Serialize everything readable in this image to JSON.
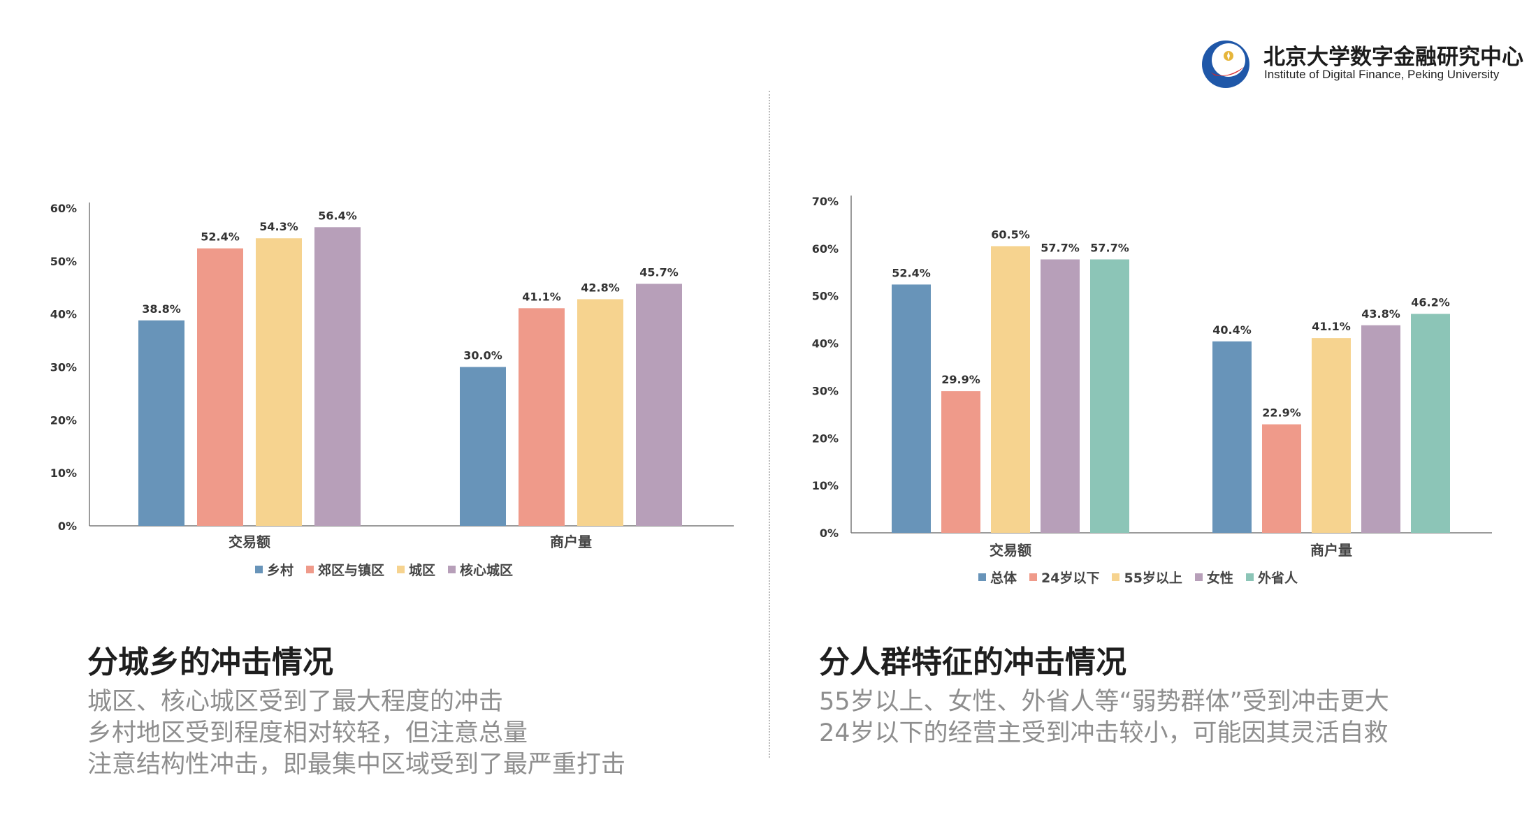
{
  "header": {
    "org_cn": "北京大学数字金融研究中心",
    "org_en": "Institute of Digital Finance, Peking University"
  },
  "colors": {
    "blue": "#6894b9",
    "salmon": "#ef9a8a",
    "yellow": "#f6d38f",
    "purple": "#b79fb9",
    "teal": "#8cc5b7",
    "logo_blue": "#1f57a8",
    "logo_red": "#d7262b",
    "logo_gold": "#e6b53a"
  },
  "chart_data": [
    {
      "type": "bar",
      "categories": [
        "交易额",
        "商户量"
      ],
      "series": [
        {
          "name": "乡村",
          "values": [
            38.8,
            30.0
          ],
          "labels": [
            "38.8%",
            "30.0%"
          ],
          "color": "#6894b9"
        },
        {
          "name": "郊区与镇区",
          "values": [
            52.4,
            41.1
          ],
          "labels": [
            "52.4%",
            "41.1%"
          ],
          "color": "#ef9a8a"
        },
        {
          "name": "城区",
          "values": [
            54.3,
            42.8
          ],
          "labels": [
            "54.3%",
            "42.8%"
          ],
          "color": "#f6d38f"
        },
        {
          "name": "核心城区",
          "values": [
            56.4,
            45.7
          ],
          "labels": [
            "56.4%",
            "45.7%"
          ],
          "color": "#b79fb9"
        }
      ],
      "ylim": [
        0,
        60
      ],
      "yticks": [
        "0%",
        "10%",
        "20%",
        "30%",
        "40%",
        "50%",
        "60%"
      ],
      "legend_position": "bottom",
      "grid": false
    },
    {
      "type": "bar",
      "categories": [
        "交易额",
        "商户量"
      ],
      "series": [
        {
          "name": "总体",
          "values": [
            52.4,
            40.4
          ],
          "labels": [
            "52.4%",
            "40.4%"
          ],
          "color": "#6894b9"
        },
        {
          "name": "24岁以下",
          "values": [
            29.9,
            22.9
          ],
          "labels": [
            "29.9%",
            "22.9%"
          ],
          "color": "#ef9a8a"
        },
        {
          "name": "55岁以上",
          "values": [
            60.5,
            41.1
          ],
          "labels": [
            "60.5%",
            "41.1%"
          ],
          "color": "#f6d38f"
        },
        {
          "name": "女性",
          "values": [
            57.7,
            43.8
          ],
          "labels": [
            "57.7%",
            "43.8%"
          ],
          "color": "#b79fb9"
        },
        {
          "name": "外省人",
          "values": [
            57.7,
            46.2
          ],
          "labels": [
            "57.7%",
            "46.2%"
          ],
          "color": "#8cc5b7"
        }
      ],
      "ylim": [
        0,
        70
      ],
      "yticks": [
        "0%",
        "10%",
        "20%",
        "30%",
        "40%",
        "50%",
        "60%",
        "70%"
      ],
      "legend_position": "bottom",
      "grid": false
    }
  ],
  "left_section": {
    "heading": "分城乡的冲击情况",
    "lines": [
      "城区、核心城区受到了最大程度的冲击",
      "乡村地区受到程度相对较轻，但注意总量",
      "注意结构性冲击，即最集中区域受到了最严重打击"
    ]
  },
  "right_section": {
    "heading": "分人群特征的冲击情况",
    "lines": [
      "55岁以上、女性、外省人等“弱势群体”受到冲击更大",
      "24岁以下的经营主受到冲击较小，可能因其灵活自救"
    ]
  }
}
